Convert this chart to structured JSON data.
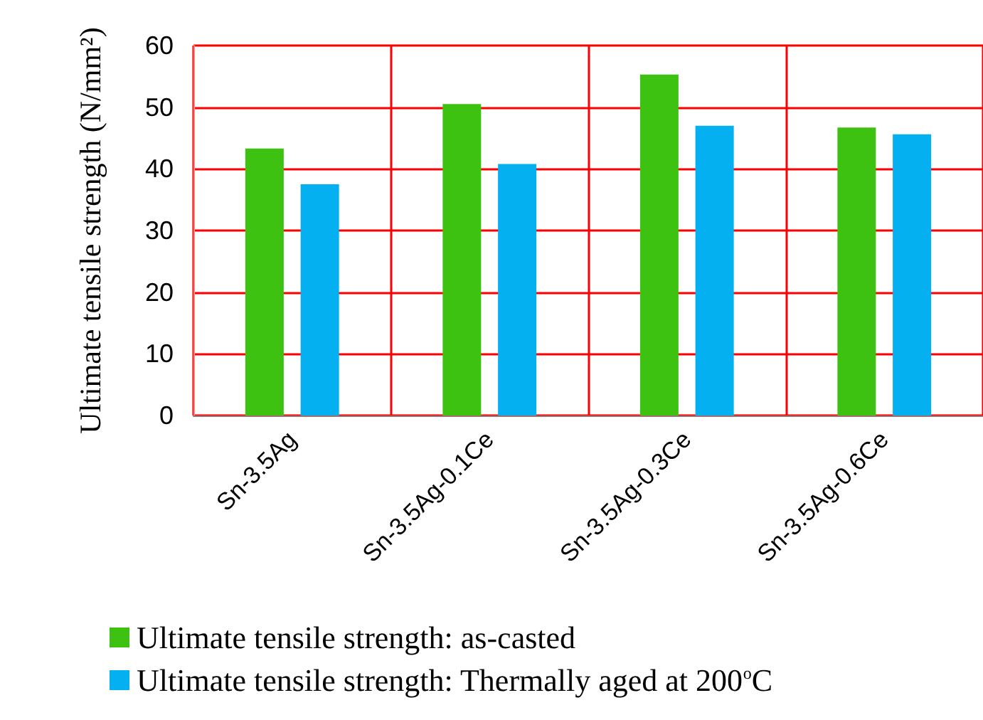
{
  "chart_data": {
    "type": "bar",
    "ylabel": "Ultimate tensile strength (N/mm²)",
    "categories": [
      "Sn-3.5Ag",
      "Sn-3.5Ag-0.1Ce",
      "Sn-3.5Ag-0.3Ce",
      "Sn-3.5Ag-0.6Ce"
    ],
    "series": [
      {
        "name": "Ultimate tensile strength: as-casted",
        "color": "#3dc212",
        "values": [
          43.3,
          50.5,
          55.3,
          46.7
        ]
      },
      {
        "name": "Ultimate tensile strength: Thermally aged at 200$^{o}$C",
        "color": "#04b0ef",
        "values": [
          37.5,
          40.8,
          47.0,
          45.6
        ]
      }
    ],
    "ylim": [
      0,
      60
    ],
    "yticks": [
      0,
      10,
      20,
      30,
      40,
      50,
      60
    ],
    "grid": true,
    "legend": "bottom left"
  }
}
